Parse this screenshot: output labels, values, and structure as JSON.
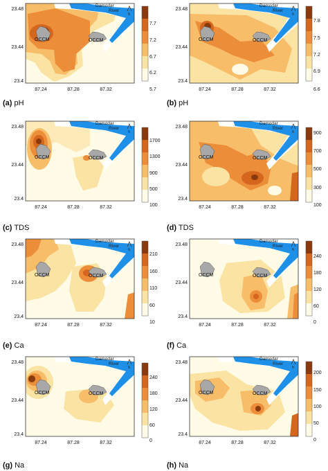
{
  "panels": [
    {
      "label": "(a)",
      "variable": "pH",
      "cb": [
        "7.7",
        "7.2",
        "6.7",
        "6.2",
        "5.7"
      ],
      "xt": [
        "87.24",
        "87.28",
        "87.32"
      ],
      "yt": [
        "23.48",
        "23.44",
        "23.4"
      ],
      "river": [
        "Damodar",
        "River"
      ],
      "occm": [
        "OCCM",
        "OCCM"
      ]
    },
    {
      "label": "(b)",
      "variable": "pH",
      "cb": [
        "7.8",
        "7.5",
        "7.2",
        "6.9",
        "6.6"
      ],
      "xt": [
        "87.24",
        "87.28",
        "87.32"
      ],
      "yt": [
        "23.48",
        "23.44",
        "23.4"
      ],
      "river": [
        "Damodar",
        "River"
      ],
      "occm": [
        "OCCM",
        "OCCM"
      ]
    },
    {
      "label": "(c)",
      "variable": "TDS",
      "cb": [
        "1700",
        "1300",
        "900",
        "500",
        "100"
      ],
      "xt": [
        "87.24",
        "87.28",
        "87.32"
      ],
      "yt": [
        "23.48",
        "23.44",
        "23.4"
      ],
      "river": [
        "Damodar",
        "River"
      ],
      "occm": [
        "OCCM",
        "OCCM"
      ]
    },
    {
      "label": "(d)",
      "variable": "TDS",
      "cb": [
        "900",
        "700",
        "500",
        "300",
        "100"
      ],
      "xt": [
        "87.24",
        "87.28",
        "87.32"
      ],
      "yt": [
        "23.48",
        "23.44",
        "23.4"
      ],
      "river": [
        "Damodar",
        "River"
      ],
      "occm": [
        "OCCM",
        "OCCM"
      ]
    },
    {
      "label": "(e)",
      "variable": "Ca",
      "cb": [
        "210",
        "160",
        "110",
        "60",
        "10"
      ],
      "xt": [
        "87.24",
        "87.28",
        "87.32"
      ],
      "yt": [
        "23.48",
        "23.44",
        "23.4"
      ],
      "river": [
        "Damodar",
        "River"
      ],
      "occm": [
        "OCCM",
        "OCCM"
      ]
    },
    {
      "label": "(f)",
      "variable": "Ca",
      "cb": [
        "240",
        "180",
        "120",
        "60",
        "0"
      ],
      "xt": [
        "87.24",
        "87.28",
        "87.32"
      ],
      "yt": [
        "23.48",
        "23.44",
        "23.4"
      ],
      "river": [
        "Damodar",
        "River"
      ],
      "occm": [
        "OCCM",
        "OCCM"
      ]
    },
    {
      "label": "(g)",
      "variable": "Na",
      "cb": [
        "240",
        "180",
        "120",
        "60",
        "0"
      ],
      "xt": [
        "87.24",
        "87.28",
        "87.32"
      ],
      "yt": [
        "23.48",
        "23.44",
        "23.4"
      ],
      "river": [
        "Damodar",
        "River"
      ],
      "occm": [
        "OCCM",
        "OCCM"
      ]
    },
    {
      "label": "(h)",
      "variable": "Na",
      "cb": [
        "200",
        "150",
        "100",
        "50",
        "0"
      ],
      "xt": [
        "87.24",
        "87.28",
        "87.32"
      ],
      "yt": [
        "23.48",
        "23.44",
        "23.4"
      ],
      "river": [
        "Damodar",
        "River"
      ],
      "occm": [
        "OCCM",
        "OCCM"
      ]
    }
  ],
  "colors": {
    "c1": "#fffbe6",
    "c2": "#fbe3a4",
    "c3": "#f7bd68",
    "c4": "#ec8d3a",
    "c5": "#d4661d",
    "c6": "#8a3a0c",
    "river": "#1e90e8",
    "mine": "#a8a8a8"
  },
  "icons": {
    "north": "north-arrow-icon"
  }
}
